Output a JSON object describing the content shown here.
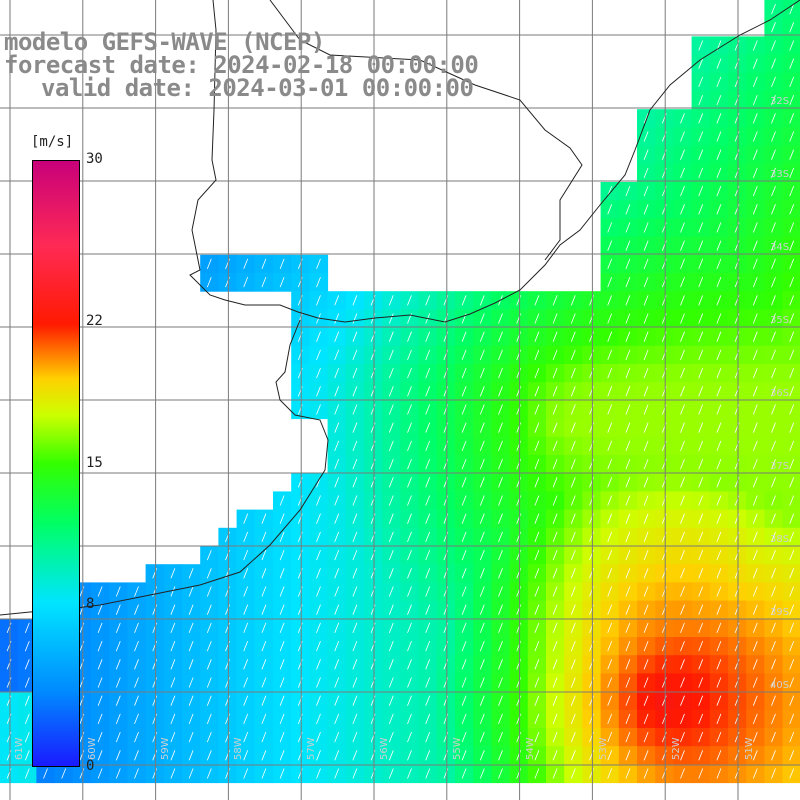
{
  "title": {
    "line1": "modelo GEFS-WAVE (NCEP)",
    "line2": "forecast date: 2024-02-18 00:00:00",
    "line3": "valid date: 2024-03-01 00:00:00"
  },
  "colorbar": {
    "unit": "[m/s]",
    "ticks": [
      {
        "label": "30",
        "value": 30
      },
      {
        "label": "22",
        "value": 22
      },
      {
        "label": "15",
        "value": 15
      },
      {
        "label": "8",
        "value": 8
      },
      {
        "label": "0",
        "value": 0
      }
    ],
    "min": 0,
    "max": 30
  },
  "lat_labels": [
    "32S",
    "33S",
    "34S",
    "35S",
    "36S",
    "37S",
    "38S",
    "39S",
    "40S"
  ],
  "lon_labels": [
    "61W",
    "60W",
    "59W",
    "58W",
    "57W",
    "56W",
    "55W",
    "54W",
    "53W",
    "52W",
    "51W"
  ]
}
